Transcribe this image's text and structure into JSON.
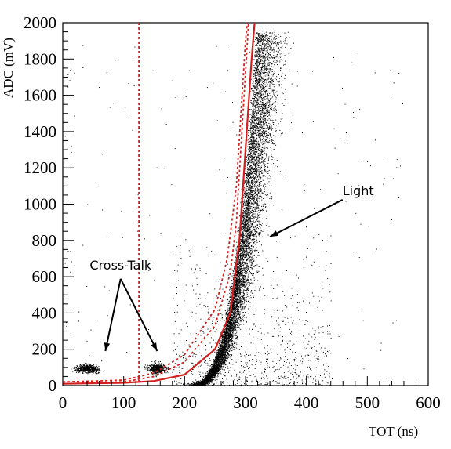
{
  "chart_data": {
    "type": "scatter",
    "title": "",
    "xlabel": "TOT (ns)",
    "ylabel": "ADC (mV)",
    "xlim": [
      0,
      600
    ],
    "ylim": [
      0,
      2000
    ],
    "x_ticks": [
      0,
      100,
      200,
      300,
      400,
      500,
      600
    ],
    "y_ticks": [
      0,
      200,
      400,
      600,
      800,
      1000,
      1200,
      1400,
      1600,
      1800,
      2000
    ],
    "grid": false,
    "legend": "none",
    "colors": {
      "points": "#000000",
      "curves": "#d41f1f"
    },
    "point_clusters": [
      {
        "name": "",
        "x_center": 40,
        "x_spread": 28,
        "y_center": 95,
        "y_spread": 18
      },
      {
        "name": "",
        "x_center": 155,
        "x_spread": 22,
        "y_center": 95,
        "y_spread": 25
      },
      {
        "name": "",
        "x_min": 130,
        "x_max": 380,
        "y_min": 0,
        "y_max": 1950,
        "shape": "dense band along exponential rise"
      }
    ],
    "vertical_line": {
      "x": 125,
      "style": "dashed"
    },
    "curves": [
      {
        "name": "",
        "style": "solid",
        "points": [
          [
            0,
            10
          ],
          [
            100,
            15
          ],
          [
            150,
            25
          ],
          [
            200,
            60
          ],
          [
            250,
            200
          ],
          [
            275,
            400
          ],
          [
            290,
            800
          ],
          [
            300,
            1300
          ],
          [
            310,
            1800
          ],
          [
            315,
            2000
          ]
        ]
      },
      {
        "name": "",
        "style": "dashed",
        "points": [
          [
            0,
            10
          ],
          [
            100,
            20
          ],
          [
            150,
            50
          ],
          [
            200,
            130
          ],
          [
            250,
            330
          ],
          [
            275,
            620
          ],
          [
            285,
            900
          ],
          [
            295,
            1450
          ],
          [
            305,
            2000
          ]
        ]
      },
      {
        "name": "",
        "style": "dashed",
        "points": [
          [
            0,
            20
          ],
          [
            100,
            30
          ],
          [
            150,
            70
          ],
          [
            200,
            170
          ],
          [
            250,
            420
          ],
          [
            270,
            700
          ],
          [
            285,
            1100
          ],
          [
            300,
            1900
          ],
          [
            303,
            2000
          ]
        ]
      }
    ],
    "annotations": [
      {
        "text": "Cross-Talk",
        "label_at": [
          95,
          640
        ],
        "arrows_to": [
          [
            70,
            190
          ],
          [
            155,
            190
          ]
        ]
      },
      {
        "text": "Light",
        "label_at": [
          485,
          1050
        ],
        "arrows_to": [
          [
            340,
            820
          ]
        ]
      }
    ]
  }
}
